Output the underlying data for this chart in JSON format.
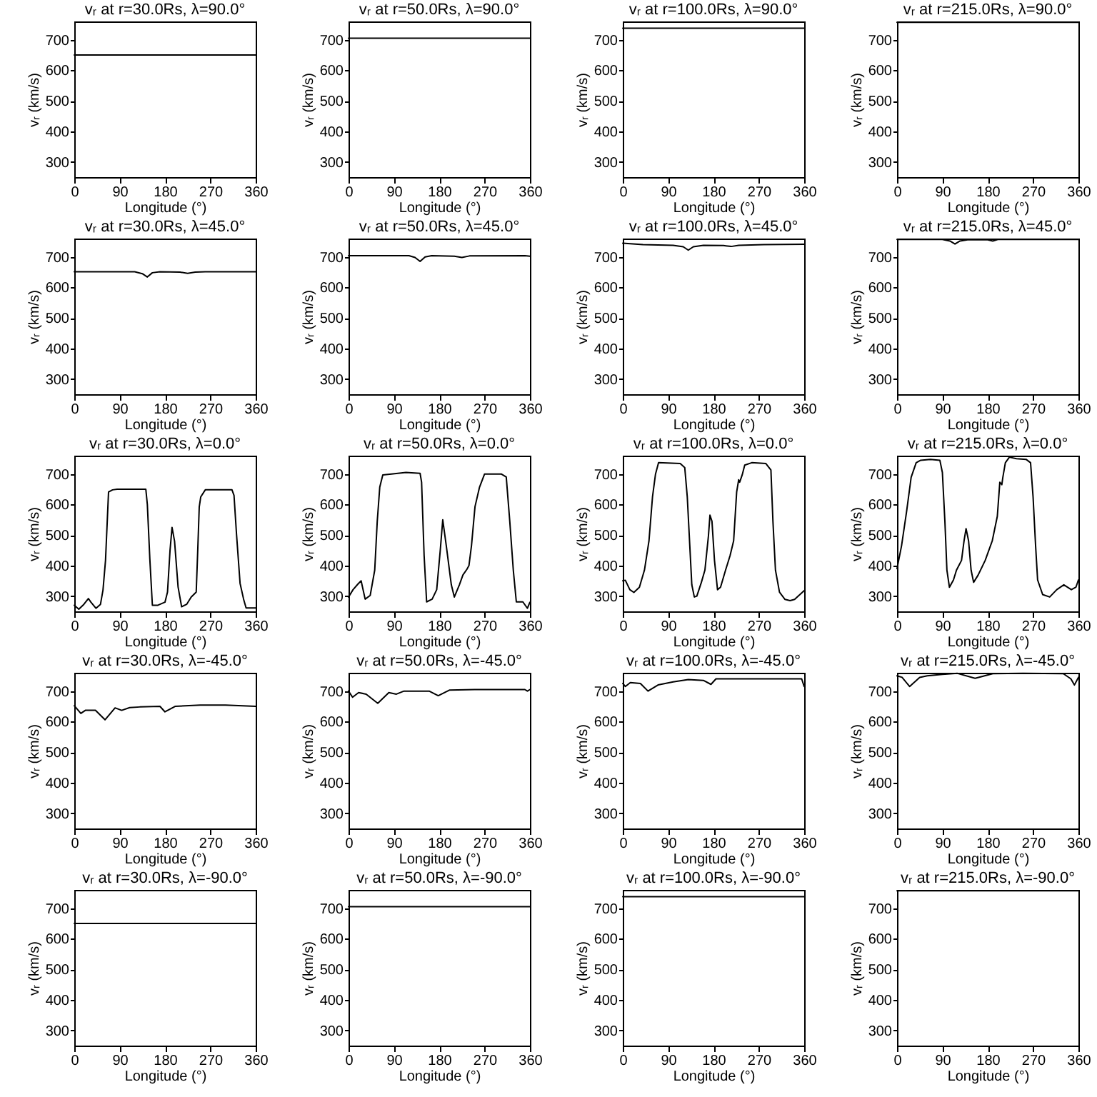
{
  "chart_data": [
    {
      "type": "line",
      "title": "vᵣ at r=30.0Rs, λ=90.0°",
      "xlabel": "Longitude (°)",
      "ylabel": "vᵣ (km/s)",
      "x": [
        0,
        360
      ],
      "series": [
        {
          "color": "#000000",
          "values": [
            650,
            650
          ]
        }
      ],
      "xlim": [
        0,
        360
      ],
      "ylim": [
        250,
        760
      ],
      "xticks": [
        0,
        90,
        180,
        270,
        360
      ],
      "yticks": [
        300,
        400,
        500,
        600,
        700
      ]
    },
    {
      "type": "line",
      "title": "vᵣ at r=50.0Rs, λ=90.0°",
      "xlabel": "Longitude (°)",
      "ylabel": "vᵣ (km/s)",
      "x": [
        0,
        360
      ],
      "series": [
        {
          "color": "#000000",
          "values": [
            705,
            705
          ]
        }
      ],
      "xlim": [
        0,
        360
      ],
      "ylim": [
        250,
        760
      ],
      "xticks": [
        0,
        90,
        180,
        270,
        360
      ],
      "yticks": [
        300,
        400,
        500,
        600,
        700
      ]
    },
    {
      "type": "line",
      "title": "vᵣ at r=100.0Rs, λ=90.0°",
      "xlabel": "Longitude (°)",
      "ylabel": "vᵣ (km/s)",
      "x": [
        0,
        360
      ],
      "series": [
        {
          "color": "#000000",
          "values": [
            738,
            738
          ]
        }
      ],
      "xlim": [
        0,
        360
      ],
      "ylim": [
        250,
        760
      ],
      "xticks": [
        0,
        90,
        180,
        270,
        360
      ],
      "yticks": [
        300,
        400,
        500,
        600,
        700
      ]
    },
    {
      "type": "line",
      "title": "vᵣ at r=215.0Rs, λ=90.0°",
      "xlabel": "Longitude (°)",
      "ylabel": "vᵣ (km/s)",
      "x": [
        0,
        360
      ],
      "series": [
        {
          "color": "#000000",
          "values": [
            757,
            757
          ]
        }
      ],
      "xlim": [
        0,
        360
      ],
      "ylim": [
        250,
        760
      ],
      "xticks": [
        0,
        90,
        180,
        270,
        360
      ],
      "yticks": [
        300,
        400,
        500,
        600,
        700
      ]
    },
    {
      "type": "line",
      "title": "vᵣ at r=30.0Rs, λ=45.0°",
      "xlabel": "Longitude (°)",
      "ylabel": "vᵣ (km/s)",
      "x": [
        0,
        120,
        135,
        145,
        155,
        170,
        210,
        225,
        240,
        260,
        360
      ],
      "series": [
        {
          "color": "#000000",
          "values": [
            651,
            651,
            645,
            634,
            648,
            651,
            650,
            646,
            650,
            651,
            651
          ]
        }
      ],
      "xlim": [
        0,
        360
      ],
      "ylim": [
        250,
        760
      ],
      "xticks": [
        0,
        90,
        180,
        270,
        360
      ],
      "yticks": [
        300,
        400,
        500,
        600,
        700
      ]
    },
    {
      "type": "line",
      "title": "vᵣ at r=50.0Rs, λ=45.0°",
      "xlabel": "Longitude (°)",
      "ylabel": "vᵣ (km/s)",
      "x": [
        0,
        120,
        132,
        142,
        152,
        165,
        210,
        225,
        240,
        350,
        360
      ],
      "series": [
        {
          "color": "#000000",
          "values": [
            704,
            704,
            698,
            685,
            700,
            704,
            702,
            698,
            703,
            704,
            702
          ]
        }
      ],
      "xlim": [
        0,
        360
      ],
      "ylim": [
        250,
        760
      ],
      "xticks": [
        0,
        90,
        180,
        270,
        360
      ],
      "yticks": [
        300,
        400,
        500,
        600,
        700
      ]
    },
    {
      "type": "line",
      "title": "vᵣ at r=100.0Rs, λ=45.0°",
      "xlabel": "Longitude (°)",
      "ylabel": "vᵣ (km/s)",
      "x": [
        0,
        40,
        100,
        120,
        130,
        140,
        160,
        200,
        215,
        230,
        280,
        360
      ],
      "series": [
        {
          "color": "#000000",
          "values": [
            745,
            740,
            738,
            733,
            722,
            733,
            738,
            737,
            734,
            738,
            740,
            741
          ]
        }
      ],
      "xlim": [
        0,
        360
      ],
      "ylim": [
        250,
        760
      ],
      "xticks": [
        0,
        90,
        180,
        270,
        360
      ],
      "yticks": [
        300,
        400,
        500,
        600,
        700
      ]
    },
    {
      "type": "line",
      "title": "vᵣ at r=215.0Rs, λ=45.0°",
      "xlabel": "Longitude (°)",
      "ylabel": "vᵣ (km/s)",
      "x": [
        0,
        90,
        105,
        115,
        125,
        140,
        180,
        190,
        200,
        360
      ],
      "series": [
        {
          "color": "#000000",
          "values": [
            757,
            757,
            752,
            742,
            752,
            756,
            756,
            752,
            757,
            757
          ]
        }
      ],
      "xlim": [
        0,
        360
      ],
      "ylim": [
        250,
        760
      ],
      "xticks": [
        0,
        90,
        180,
        270,
        360
      ],
      "yticks": [
        300,
        400,
        500,
        600,
        700
      ]
    },
    {
      "type": "line",
      "title": "vᵣ at r=30.0Rs, λ=0.0°",
      "xlabel": "Longitude (°)",
      "ylabel": "vᵣ (km/s)",
      "x": [
        0,
        9,
        19,
        28,
        33,
        43,
        52,
        57,
        62,
        68,
        76,
        85,
        142,
        145,
        150,
        155,
        166,
        180,
        185,
        190,
        194,
        199,
        206,
        213,
        223,
        232,
        242,
        245,
        248,
        251,
        260,
        313,
        317,
        322,
        329,
        336,
        341,
        360
      ],
      "series": [
        {
          "color": "#000000",
          "values": [
            270,
            257,
            273,
            292,
            280,
            260,
            273,
            320,
            417,
            641,
            648,
            650,
            650,
            600,
            420,
            270,
            270,
            280,
            313,
            449,
            525,
            480,
            330,
            265,
            273,
            297,
            313,
            449,
            592,
            625,
            648,
            648,
            630,
            502,
            342,
            290,
            261,
            261
          ]
        }
      ],
      "xlim": [
        0,
        360
      ],
      "ylim": [
        250,
        760
      ],
      "xticks": [
        0,
        90,
        180,
        270,
        360
      ],
      "yticks": [
        300,
        400,
        500,
        600,
        700
      ]
    },
    {
      "type": "line",
      "title": "vᵣ at r=50.0Rs, λ=0.0°",
      "xlabel": "Longitude (°)",
      "ylabel": "vᵣ (km/s)",
      "x": [
        0,
        9,
        19,
        25,
        33,
        43,
        52,
        57,
        62,
        68,
        85,
        114,
        142,
        145,
        150,
        155,
        166,
        175,
        182,
        187,
        194,
        204,
        210,
        220,
        227,
        235,
        239,
        244,
        251,
        260,
        270,
        303,
        313,
        320,
        327,
        333,
        346,
        355,
        360
      ],
      "series": [
        {
          "color": "#000000",
          "values": [
            297,
            321,
            340,
            350,
            290,
            302,
            385,
            545,
            657,
            697,
            700,
            705,
            702,
            673,
            433,
            281,
            290,
            321,
            449,
            550,
            465,
            337,
            297,
            337,
            369,
            388,
            400,
            465,
            593,
            657,
            700,
            700,
            690,
            545,
            385,
            281,
            281,
            260,
            280
          ]
        }
      ],
      "xlim": [
        0,
        360
      ],
      "ylim": [
        250,
        760
      ],
      "xticks": [
        0,
        90,
        180,
        270,
        360
      ],
      "yticks": [
        300,
        400,
        500,
        600,
        700
      ]
    },
    {
      "type": "line",
      "title": "vᵣ at r=100.0Rs, λ=0.0°",
      "xlabel": "Longitude (°)",
      "ylabel": "vᵣ (km/s)",
      "x": [
        0,
        5,
        14,
        22,
        33,
        43,
        52,
        59,
        65,
        71,
        114,
        123,
        128,
        133,
        137,
        142,
        147,
        156,
        163,
        170,
        173,
        177,
        182,
        188,
        194,
        204,
        213,
        220,
        226,
        230,
        232,
        237,
        242,
        256,
        284,
        294,
        298,
        303,
        311,
        322,
        332,
        341,
        360
      ],
      "series": [
        {
          "color": "#000000",
          "values": [
            350,
            352,
            321,
            312,
            329,
            385,
            481,
            625,
            700,
            737,
            734,
            721,
            625,
            465,
            337,
            297,
            300,
            345,
            385,
            497,
            565,
            545,
            417,
            321,
            329,
            385,
            433,
            481,
            641,
            681,
            673,
            697,
            729,
            737,
            734,
            713,
            545,
            385,
            313,
            289,
            285,
            289,
            318
          ]
        }
      ],
      "xlim": [
        0,
        360
      ],
      "ylim": [
        250,
        760
      ],
      "xticks": [
        0,
        90,
        180,
        270,
        360
      ],
      "yticks": [
        300,
        400,
        500,
        600,
        700
      ]
    },
    {
      "type": "line",
      "title": "vᵣ at r=215.0Rs, λ=0.0°",
      "xlabel": "Longitude (°)",
      "ylabel": "vᵣ (km/s)",
      "x": [
        0,
        9,
        19,
        28,
        38,
        47,
        66,
        85,
        90,
        95,
        99,
        104,
        112,
        118,
        128,
        133,
        137,
        142,
        147,
        152,
        161,
        175,
        189,
        199,
        204,
        208,
        210,
        215,
        223,
        237,
        256,
        265,
        270,
        275,
        279,
        289,
        303,
        317,
        331,
        346,
        355,
        360
      ],
      "series": [
        {
          "color": "#000000",
          "values": [
            390,
            465,
            577,
            689,
            737,
            745,
            748,
            745,
            705,
            545,
            385,
            329,
            353,
            385,
            417,
            481,
            521,
            481,
            385,
            345,
            369,
            417,
            481,
            561,
            673,
            665,
            689,
            737,
            755,
            750,
            748,
            737,
            625,
            465,
            353,
            305,
            297,
            321,
            337,
            321,
            329,
            353
          ]
        }
      ],
      "xlim": [
        0,
        360
      ],
      "ylim": [
        250,
        760
      ],
      "xticks": [
        0,
        90,
        180,
        270,
        360
      ],
      "yticks": [
        300,
        400,
        500,
        600,
        700
      ]
    },
    {
      "type": "line",
      "title": "vᵣ at r=30.0Rs, λ=-45.0°",
      "xlabel": "Longitude (°)",
      "ylabel": "vᵣ (km/s)",
      "x": [
        0,
        13,
        22,
        42,
        61,
        81,
        94,
        110,
        130,
        170,
        180,
        200,
        250,
        300,
        360
      ],
      "series": [
        {
          "color": "#000000",
          "values": [
            652,
            627,
            637,
            637,
            606,
            645,
            637,
            646,
            648,
            650,
            632,
            650,
            654,
            654,
            650
          ]
        }
      ],
      "xlim": [
        0,
        360
      ],
      "ylim": [
        250,
        760
      ],
      "xticks": [
        0,
        90,
        180,
        270,
        360
      ],
      "yticks": [
        300,
        400,
        500,
        600,
        700
      ]
    },
    {
      "type": "line",
      "title": "vᵣ at r=50.0Rs, λ=-45.0°",
      "xlabel": "Longitude (°)",
      "ylabel": "vᵣ (km/s)",
      "x": [
        0,
        8,
        20,
        35,
        58,
        80,
        95,
        110,
        160,
        178,
        200,
        250,
        350,
        355,
        360
      ],
      "series": [
        {
          "color": "#000000",
          "values": [
            700,
            680,
            695,
            690,
            660,
            695,
            690,
            700,
            700,
            685,
            703,
            705,
            705,
            700,
            705
          ]
        }
      ],
      "xlim": [
        0,
        360
      ],
      "ylim": [
        250,
        760
      ],
      "xticks": [
        0,
        90,
        180,
        270,
        360
      ],
      "yticks": [
        300,
        400,
        500,
        600,
        700
      ]
    },
    {
      "type": "line",
      "title": "vᵣ at r=100.0Rs, λ=-45.0°",
      "xlabel": "Longitude (°)",
      "ylabel": "vᵣ (km/s)",
      "x": [
        0,
        5,
        15,
        35,
        50,
        70,
        100,
        130,
        160,
        175,
        185,
        250,
        355,
        360
      ],
      "series": [
        {
          "color": "#000000",
          "values": [
            725,
            715,
            728,
            725,
            700,
            720,
            730,
            738,
            735,
            722,
            740,
            740,
            740,
            715
          ]
        }
      ],
      "xlim": [
        0,
        360
      ],
      "ylim": [
        250,
        760
      ],
      "xticks": [
        0,
        90,
        180,
        270,
        360
      ],
      "yticks": [
        300,
        400,
        500,
        600,
        700
      ]
    },
    {
      "type": "line",
      "title": "vᵣ at r=215.0Rs, λ=-45.0°",
      "xlabel": "Longitude (°)",
      "ylabel": "vᵣ (km/s)",
      "x": [
        0,
        10,
        25,
        45,
        60,
        90,
        120,
        155,
        190,
        250,
        330,
        345,
        352,
        360
      ],
      "series": [
        {
          "color": "#000000",
          "values": [
            750,
            745,
            715,
            745,
            750,
            755,
            758,
            742,
            757,
            758,
            757,
            740,
            720,
            745
          ]
        }
      ],
      "xlim": [
        0,
        360
      ],
      "ylim": [
        250,
        760
      ],
      "xticks": [
        0,
        90,
        180,
        270,
        360
      ],
      "yticks": [
        300,
        400,
        500,
        600,
        700
      ]
    },
    {
      "type": "line",
      "title": "vᵣ at r=30.0Rs, λ=-90.0°",
      "xlabel": "Longitude (°)",
      "ylabel": "vᵣ (km/s)",
      "x": [
        0,
        360
      ],
      "series": [
        {
          "color": "#000000",
          "values": [
            650,
            650
          ]
        }
      ],
      "xlim": [
        0,
        360
      ],
      "ylim": [
        250,
        760
      ],
      "xticks": [
        0,
        90,
        180,
        270,
        360
      ],
      "yticks": [
        300,
        400,
        500,
        600,
        700
      ]
    },
    {
      "type": "line",
      "title": "vᵣ at r=50.0Rs, λ=-90.0°",
      "xlabel": "Longitude (°)",
      "ylabel": "vᵣ (km/s)",
      "x": [
        0,
        360
      ],
      "series": [
        {
          "color": "#000000",
          "values": [
            705,
            705
          ]
        }
      ],
      "xlim": [
        0,
        360
      ],
      "ylim": [
        250,
        760
      ],
      "xticks": [
        0,
        90,
        180,
        270,
        360
      ],
      "yticks": [
        300,
        400,
        500,
        600,
        700
      ]
    },
    {
      "type": "line",
      "title": "vᵣ at r=100.0Rs, λ=-90.0°",
      "xlabel": "Longitude (°)",
      "ylabel": "vᵣ (km/s)",
      "x": [
        0,
        360
      ],
      "series": [
        {
          "color": "#000000",
          "values": [
            738,
            738
          ]
        }
      ],
      "xlim": [
        0,
        360
      ],
      "ylim": [
        250,
        760
      ],
      "xticks": [
        0,
        90,
        180,
        270,
        360
      ],
      "yticks": [
        300,
        400,
        500,
        600,
        700
      ]
    },
    {
      "type": "line",
      "title": "vᵣ at r=215.0Rs, λ=-90.0°",
      "xlabel": "Longitude (°)",
      "ylabel": "vᵣ (km/s)",
      "x": [
        0,
        360
      ],
      "series": [
        {
          "color": "#000000",
          "values": [
            757,
            757
          ]
        }
      ],
      "xlim": [
        0,
        360
      ],
      "ylim": [
        250,
        760
      ],
      "xticks": [
        0,
        90,
        180,
        270,
        360
      ],
      "yticks": [
        300,
        400,
        500,
        600,
        700
      ]
    }
  ]
}
